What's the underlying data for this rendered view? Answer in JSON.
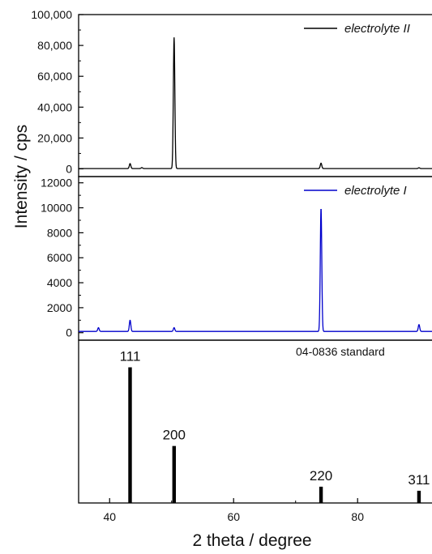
{
  "chart_data": {
    "type": "line",
    "xlabel": "2 theta / degree",
    "ylabel": "Intensity / cps",
    "xlim": [
      35,
      92
    ],
    "x_ticks": [
      "40",
      "60",
      "80"
    ],
    "panels": [
      {
        "type": "line",
        "legend": "electrolyte II",
        "legend_position": "top-right",
        "color": "#000000",
        "ylim": [
          -5000,
          100000
        ],
        "y_ticks": [
          "0",
          "20,000",
          "40,000",
          "60,000",
          "80,000",
          "100,000"
        ],
        "baseline": 200,
        "peaks": [
          {
            "x": 43.3,
            "y": 3200
          },
          {
            "x": 45.2,
            "y": 600
          },
          {
            "x": 50.4,
            "y": 85000
          },
          {
            "x": 74.1,
            "y": 3500
          },
          {
            "x": 89.9,
            "y": 500
          }
        ]
      },
      {
        "type": "line",
        "legend": "electrolyte I",
        "legend_position": "top-right",
        "color": "#0000cc",
        "ylim": [
          -600,
          12500
        ],
        "y_ticks": [
          "0",
          "2000",
          "4000",
          "6000",
          "8000",
          "10000",
          "12000"
        ],
        "baseline": 100,
        "peaks": [
          {
            "x": 38.2,
            "y": 300
          },
          {
            "x": 43.3,
            "y": 900
          },
          {
            "x": 50.4,
            "y": 300
          },
          {
            "x": 74.1,
            "y": 9900
          },
          {
            "x": 89.9,
            "y": 550
          }
        ]
      },
      {
        "type": "bar",
        "label": "04-0836 standard",
        "color": "#000000",
        "ylim": [
          0,
          120
        ],
        "bars": [
          {
            "x": 43.3,
            "value": 100,
            "label": "111"
          },
          {
            "x": 50.4,
            "value": 42,
            "label": "200"
          },
          {
            "x": 74.1,
            "value": 12,
            "label": "220"
          },
          {
            "x": 89.9,
            "value": 9,
            "label": "311"
          }
        ]
      }
    ]
  }
}
